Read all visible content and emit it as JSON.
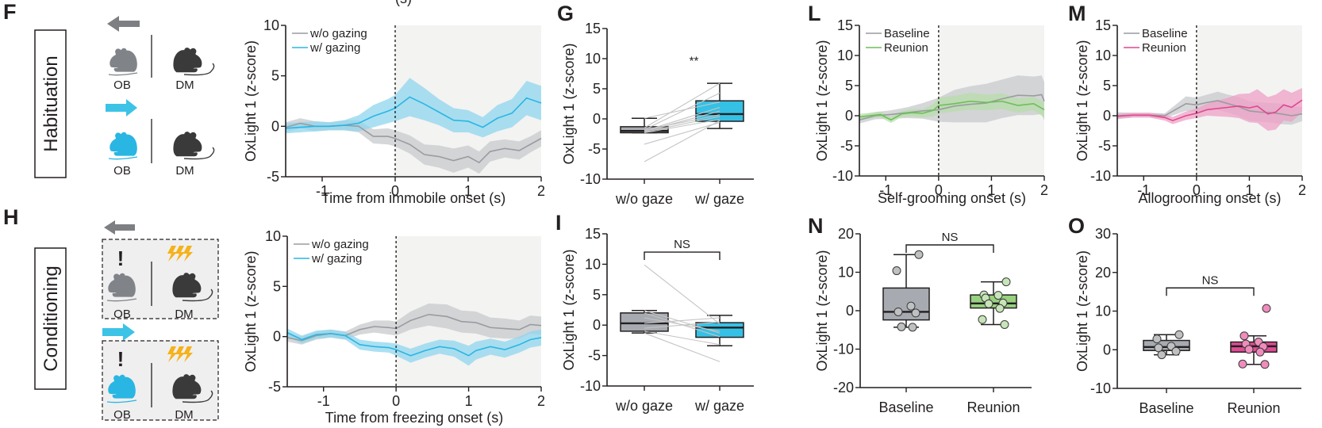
{
  "top_cut_text": "(s)",
  "panels": {
    "F": {
      "letter": "F",
      "condition": "Habituation"
    },
    "H": {
      "letter": "H",
      "condition": "Conditioning"
    },
    "G": {
      "letter": "G"
    },
    "I": {
      "letter": "I"
    },
    "L": {
      "letter": "L"
    },
    "M": {
      "letter": "M"
    },
    "N": {
      "letter": "N"
    },
    "O": {
      "letter": "O"
    }
  },
  "schematic": {
    "observer_label": "OB",
    "demonstrator_label": "DM",
    "alert_mark": "!",
    "colors": {
      "gray_mouse": "#808489",
      "blue_mouse": "#29b6e3",
      "dark_mouse": "#3a3a3a",
      "shock": "#f5b21b",
      "gray_arrow": "#7d7f82",
      "blue_arrow": "#3cc3e6",
      "box_fill": "#efefef"
    },
    "icons": [
      "arrow-left-icon",
      "arrow-right-icon",
      "mouse-icon",
      "lightning-icon",
      "exclamation-icon"
    ]
  },
  "colors": {
    "gray_line": "#9a9ca0",
    "gray_band": "#c7c9cc",
    "blue_line": "#29b6e3",
    "blue_band": "#8fd6ee",
    "green_line": "#6cbf5a",
    "green_band": "#b7ddaa",
    "pink_line": "#e0478e",
    "pink_band": "#eea0c5",
    "shade": "#f3f3f2",
    "box_gray": "#a7abb1",
    "box_blue": "#35c1e6",
    "box_green": "#98d17f",
    "box_pink": "#df4c92",
    "dot_gray": "#bfc0c2",
    "dot_green": "#c7e5b8",
    "dot_pink": "#f08cbc",
    "pair_line": "#c4c4c4"
  },
  "chart_data": [
    {
      "id": "F",
      "type": "line",
      "xlabel": "Time from immobile onset (s)",
      "ylabel": "OxLight 1 (z-score)",
      "xlim": [
        -1.5,
        2
      ],
      "ylim": [
        -5,
        10
      ],
      "xticks": [
        -1,
        0,
        1,
        2
      ],
      "yticks": [
        -5,
        0,
        5,
        10
      ],
      "onset_marker": 0,
      "shaded_after_onset": true,
      "legend": "top-left",
      "series": [
        {
          "name": "w/o gazing",
          "color": "gray",
          "x": [
            -1.5,
            -1.3,
            -1.1,
            -0.9,
            -0.7,
            -0.5,
            -0.3,
            -0.1,
            0,
            0.2,
            0.4,
            0.6,
            0.8,
            1.0,
            1.15,
            1.3,
            1.5,
            1.7,
            1.85,
            2.0
          ],
          "y": [
            -0.1,
            0.3,
            0.0,
            0.0,
            0.1,
            0.0,
            -1.0,
            -1.0,
            -1.2,
            -1.8,
            -2.8,
            -3.0,
            -3.4,
            -3.0,
            -3.6,
            -2.5,
            -2.2,
            -2.4,
            -1.8,
            -1.2
          ],
          "sem": [
            0.5,
            0.5,
            0.5,
            0.4,
            0.5,
            0.6,
            0.7,
            0.8,
            0.8,
            0.9,
            1.0,
            1.1,
            1.2,
            1.1,
            1.1,
            1.0,
            0.9,
            0.9,
            0.8,
            0.8
          ]
        },
        {
          "name": "w/ gazing",
          "color": "blue",
          "x": [
            -1.5,
            -1.3,
            -1.1,
            -0.9,
            -0.7,
            -0.5,
            -0.3,
            -0.1,
            0,
            0.2,
            0.4,
            0.6,
            0.8,
            1.0,
            1.2,
            1.4,
            1.6,
            1.8,
            2.0
          ],
          "y": [
            -0.2,
            -0.1,
            0.0,
            0.0,
            0.1,
            0.3,
            1.0,
            1.5,
            1.8,
            2.9,
            2.2,
            1.4,
            0.6,
            0.5,
            -0.1,
            0.8,
            1.3,
            2.8,
            2.3
          ],
          "sem": [
            0.5,
            0.5,
            0.5,
            0.4,
            0.5,
            0.8,
            1.1,
            1.2,
            1.3,
            1.9,
            1.6,
            1.3,
            1.2,
            1.1,
            1.0,
            1.3,
            1.4,
            1.7,
            1.7
          ]
        }
      ]
    },
    {
      "id": "H",
      "type": "line",
      "xlabel": "Time from freezing onset (s)",
      "ylabel": "OxLight 1 (z-score)",
      "xlim": [
        -1.5,
        2
      ],
      "ylim": [
        -5,
        10
      ],
      "xticks": [
        -1,
        0,
        1,
        2
      ],
      "yticks": [
        -5,
        0,
        5,
        10
      ],
      "onset_marker": 0,
      "shaded_after_onset": true,
      "legend": "top-left",
      "series": [
        {
          "name": "w/o gazing",
          "color": "gray",
          "x": [
            -1.5,
            -1.3,
            -1.1,
            -0.9,
            -0.7,
            -0.5,
            -0.3,
            -0.1,
            0,
            0.2,
            0.45,
            0.7,
            0.9,
            1.1,
            1.3,
            1.5,
            1.7,
            1.85,
            2.0
          ],
          "y": [
            -0.1,
            -0.4,
            0.1,
            0.3,
            0.1,
            0.7,
            1.0,
            0.9,
            0.8,
            1.6,
            2.2,
            2.0,
            1.5,
            1.4,
            0.9,
            0.8,
            0.7,
            1.2,
            1.1
          ],
          "sem": [
            0.4,
            0.4,
            0.4,
            0.4,
            0.4,
            0.5,
            0.6,
            0.7,
            0.7,
            0.9,
            1.1,
            1.2,
            1.1,
            1.1,
            1.0,
            1.0,
            0.9,
            0.9,
            0.9
          ]
        },
        {
          "name": "w/ gazing",
          "color": "blue",
          "x": [
            -1.5,
            -1.3,
            -1.1,
            -0.9,
            -0.7,
            -0.5,
            -0.3,
            -0.1,
            0,
            0.2,
            0.4,
            0.6,
            0.8,
            1.0,
            1.1,
            1.3,
            1.5,
            1.7,
            1.85,
            2.0
          ],
          "y": [
            0.4,
            -0.3,
            0.2,
            0.3,
            0.1,
            -0.8,
            -1.0,
            -1.1,
            -1.3,
            -1.9,
            -1.4,
            -1.0,
            -1.2,
            -1.9,
            -1.4,
            -1.0,
            -1.3,
            -0.8,
            -0.3,
            -0.1
          ],
          "sem": [
            0.4,
            0.4,
            0.4,
            0.4,
            0.4,
            0.5,
            0.5,
            0.5,
            0.6,
            0.7,
            0.7,
            0.7,
            0.8,
            1.0,
            0.9,
            0.8,
            0.8,
            0.8,
            0.8,
            0.8
          ]
        }
      ]
    },
    {
      "id": "L",
      "type": "line",
      "xlabel": "Self-grooming onset (s)",
      "ylabel": "OxLight 1 (z-score)",
      "xlim": [
        -1.5,
        2
      ],
      "ylim": [
        -10,
        15
      ],
      "xticks": [
        -1,
        0,
        1,
        2
      ],
      "yticks": [
        -10,
        -5,
        0,
        5,
        10,
        15
      ],
      "onset_marker": 0,
      "shaded_after_onset": true,
      "legend": "top-left",
      "series": [
        {
          "name": "Baseline",
          "color": "gray",
          "x": [
            -1.5,
            -1.2,
            -0.9,
            -0.6,
            -0.3,
            0,
            0.3,
            0.6,
            0.9,
            1.2,
            1.5,
            1.8,
            1.95,
            2.0
          ],
          "y": [
            -0.7,
            0.0,
            0.2,
            0.5,
            0.8,
            1.0,
            1.6,
            1.9,
            2.1,
            2.8,
            3.4,
            3.3,
            3.5,
            2.4
          ],
          "sem": [
            0.6,
            0.6,
            0.7,
            0.9,
            1.3,
            2.0,
            2.7,
            3.0,
            3.2,
            3.2,
            3.3,
            3.2,
            3.2,
            3.2
          ]
        },
        {
          "name": "Reunion",
          "color": "green",
          "x": [
            -1.5,
            -1.3,
            -1.1,
            -0.9,
            -0.7,
            -0.5,
            -0.3,
            -0.1,
            0,
            0.3,
            0.6,
            0.9,
            1.2,
            1.5,
            1.8,
            2.0
          ],
          "y": [
            -0.2,
            0.0,
            0.2,
            -0.7,
            0.3,
            0.5,
            0.4,
            0.9,
            1.7,
            2.0,
            2.4,
            2.2,
            2.4,
            1.7,
            2.0,
            1.0
          ],
          "sem": [
            0.5,
            0.5,
            0.5,
            0.5,
            0.5,
            0.6,
            0.7,
            1.0,
            1.3,
            1.3,
            1.4,
            1.3,
            1.3,
            1.2,
            1.1,
            1.3
          ]
        }
      ]
    },
    {
      "id": "M",
      "type": "line",
      "xlabel": "Allogrooming onset (s)",
      "ylabel": "OxLight 1 (z-score)",
      "xlim": [
        -1.5,
        2
      ],
      "ylim": [
        -10,
        15
      ],
      "xticks": [
        -1,
        0,
        1,
        2
      ],
      "yticks": [
        -10,
        -5,
        0,
        5,
        10,
        15
      ],
      "onset_marker": 0,
      "shaded_after_onset": true,
      "legend": "top-left",
      "series": [
        {
          "name": "Baseline",
          "color": "gray",
          "x": [
            -1.5,
            -1.2,
            -0.9,
            -0.6,
            -0.4,
            -0.2,
            0,
            0.2,
            0.4,
            0.6,
            0.8,
            1.0,
            1.2,
            1.4,
            1.6,
            1.8,
            2.0
          ],
          "y": [
            0.0,
            0.1,
            0.1,
            0.0,
            1.0,
            2.0,
            1.8,
            2.2,
            2.5,
            2.0,
            1.5,
            0.8,
            0.6,
            0.5,
            0.3,
            0.0,
            0.3
          ],
          "sem": [
            0.6,
            0.4,
            0.4,
            0.4,
            0.8,
            1.2,
            1.2,
            1.3,
            1.5,
            1.5,
            1.6,
            1.6,
            1.6,
            1.6,
            1.7,
            1.5,
            1.2
          ]
        },
        {
          "name": "Reunion",
          "color": "pink",
          "x": [
            -1.5,
            -1.2,
            -0.9,
            -0.6,
            -0.45,
            -0.2,
            0,
            0.2,
            0.4,
            0.6,
            0.8,
            1.0,
            1.15,
            1.35,
            1.5,
            1.65,
            1.8,
            2.0
          ],
          "y": [
            -0.1,
            0.1,
            0.1,
            -0.3,
            -0.8,
            0.0,
            0.4,
            1.0,
            1.2,
            1.4,
            1.6,
            1.3,
            1.6,
            0.3,
            0.6,
            1.8,
            1.4,
            2.6
          ],
          "sem": [
            0.4,
            0.4,
            0.4,
            0.5,
            0.6,
            0.7,
            0.8,
            1.0,
            1.3,
            1.6,
            2.0,
            2.4,
            2.8,
            2.8,
            2.9,
            2.6,
            2.4,
            2.0
          ]
        }
      ]
    },
    {
      "id": "G",
      "type": "box",
      "ylabel": "OxLight 1 (z-score)",
      "ylim": [
        -10,
        15
      ],
      "yticks": [
        -10,
        -5,
        0,
        5,
        10,
        15
      ],
      "categories": [
        "w/o gaze",
        "w/ gaze"
      ],
      "significance": "**",
      "significance_bracket": false,
      "boxes": [
        {
          "name": "w/o gaze",
          "color": "gray",
          "min": -2.3,
          "q1": -2.3,
          "median": -2.0,
          "q3": -1.3,
          "max": 0.1
        },
        {
          "name": "w/ gaze",
          "color": "blue",
          "min": -1.6,
          "q1": -0.4,
          "median": 0.8,
          "q3": 3.0,
          "max": 5.9
        }
      ],
      "paired": [
        [
          0.1,
          2.8
        ],
        [
          -1.5,
          5.9
        ],
        [
          -1.8,
          4.3
        ],
        [
          -2.0,
          1.9
        ],
        [
          -2.1,
          1.3
        ],
        [
          -2.2,
          0.4
        ],
        [
          -2.3,
          -0.1
        ],
        [
          -4.2,
          -0.6
        ],
        [
          -7.1,
          -0.3
        ],
        [
          -1.9,
          0.7
        ]
      ]
    },
    {
      "id": "I",
      "type": "box",
      "ylabel": "OxLight 1 (z-score)",
      "ylim": [
        -10,
        15
      ],
      "yticks": [
        -10,
        -5,
        0,
        5,
        10,
        15
      ],
      "categories": [
        "w/o gaze",
        "w/ gaze"
      ],
      "significance": "NS",
      "significance_bracket": true,
      "boxes": [
        {
          "name": "w/o gaze",
          "color": "gray",
          "min": -1.3,
          "q1": -1.0,
          "median": 0.3,
          "q3": 2.0,
          "max": 2.4
        },
        {
          "name": "w/ gaze",
          "color": "blue",
          "min": -3.4,
          "q1": -2.0,
          "median": -0.4,
          "q3": 0.4,
          "max": 1.6
        }
      ],
      "paired": [
        [
          9.9,
          0.2
        ],
        [
          2.4,
          -1.3
        ],
        [
          2.0,
          -1.9
        ],
        [
          1.2,
          -1.0
        ],
        [
          0.3,
          1.2
        ],
        [
          -0.5,
          0.5
        ],
        [
          -1.0,
          -3.2
        ],
        [
          -1.3,
          -6.0
        ]
      ]
    },
    {
      "id": "N",
      "type": "box",
      "ylabel": "OxLight 1 (z-score)",
      "ylim": [
        -20,
        20
      ],
      "yticks": [
        -20,
        -10,
        0,
        10,
        20
      ],
      "categories": [
        "Baseline",
        "Reunion"
      ],
      "significance": "NS",
      "significance_bracket": true,
      "boxes": [
        {
          "name": "Baseline",
          "color": "gray",
          "min": -4.3,
          "q1": -2.4,
          "median": -0.3,
          "q3": 5.9,
          "max": 14.6,
          "points": [
            14.6,
            10.4,
            1.2,
            -0.3,
            -0.6,
            -4.2,
            -4.3
          ]
        },
        {
          "name": "Reunion",
          "color": "green",
          "min": -3.6,
          "q1": 0.7,
          "median": 1.9,
          "q3": 4.1,
          "max": 7.5,
          "points": [
            7.5,
            4.1,
            4.0,
            3.3,
            2.0,
            1.8,
            0.6,
            -2.3,
            -3.6
          ]
        }
      ]
    },
    {
      "id": "O",
      "type": "box",
      "ylabel": "OxLight 1 (z-score)",
      "ylim": [
        -10,
        30
      ],
      "yticks": [
        -10,
        0,
        10,
        20,
        30
      ],
      "categories": [
        "Baseline",
        "Reunion"
      ],
      "significance": "NS",
      "significance_bracket": true,
      "boxes": [
        {
          "name": "Baseline",
          "color": "gray",
          "min": -1.3,
          "q1": -0.2,
          "median": 0.7,
          "q3": 2.4,
          "max": 3.9,
          "points": [
            3.9,
            2.8,
            0.9,
            0.5,
            -0.4,
            -1.3
          ]
        },
        {
          "name": "Reunion",
          "color": "pink",
          "min": -3.8,
          "q1": -0.6,
          "median": 0.9,
          "q3": 2.0,
          "max": 3.6,
          "points": [
            10.7,
            3.6,
            2.0,
            1.5,
            0.8,
            0.1,
            -0.6,
            -3.7,
            -3.8
          ]
        }
      ]
    }
  ]
}
